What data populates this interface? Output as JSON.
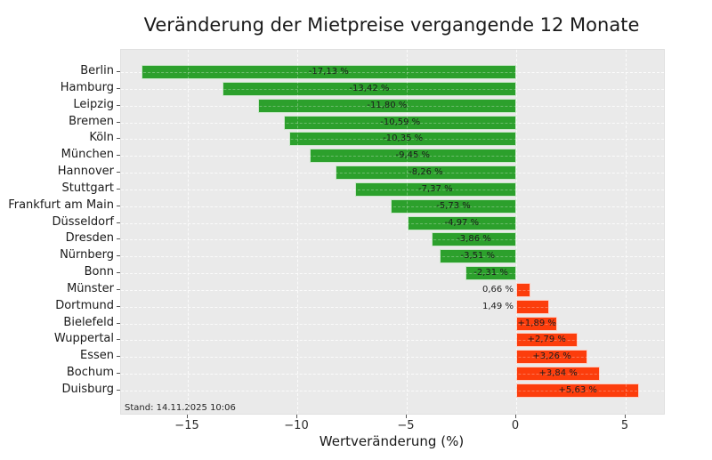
{
  "chart_data": {
    "type": "bar",
    "orientation": "horizontal",
    "title": "Veränderung der Mietpreise vergangende 12 Monate",
    "xlabel": "Wertveränderung (%)",
    "ylabel": "",
    "annotation": "Stand: 14.11.2025 10:06",
    "grid": true,
    "legend": "none",
    "xlim": [
      -18.05,
      6.75
    ],
    "xticks": [
      -15,
      -10,
      -5,
      0,
      5
    ],
    "xtick_labels": [
      "−15",
      "−10",
      "−5",
      "0",
      "5"
    ],
    "categories": [
      "Berlin",
      "Hamburg",
      "Leipzig",
      "Bremen",
      "Köln",
      "München",
      "Hannover",
      "Stuttgart",
      "Frankfurt am Main",
      "Düsseldorf",
      "Dresden",
      "Nürnberg",
      "Bonn",
      "Münster",
      "Dortmund",
      "Bielefeld",
      "Wuppertal",
      "Essen",
      "Bochum",
      "Duisburg"
    ],
    "values": [
      -17.13,
      -13.42,
      -11.8,
      -10.59,
      -10.35,
      -9.45,
      -8.26,
      -7.37,
      -5.73,
      -4.97,
      -3.86,
      -3.51,
      -2.31,
      0.66,
      1.49,
      1.89,
      2.79,
      3.26,
      3.84,
      5.63
    ],
    "bar_labels": [
      "-17,13 %",
      "-13,42 %",
      "-11,80 %",
      "-10,59 %",
      "-10,35 %",
      "-9,45 %",
      "-8,26 %",
      "-7,37 %",
      "-5,73 %",
      "-4,97 %",
      "-3,86 %",
      "-3,51 %",
      "-2,31 %",
      "0,66 %",
      "1,49 %",
      "+1,89 %",
      "+2,79 %",
      "+3,26 %",
      "+3,84 %",
      "+5,63 %"
    ],
    "label_placement": [
      "inside",
      "inside",
      "inside",
      "inside",
      "inside",
      "inside",
      "inside",
      "inside",
      "inside",
      "inside",
      "inside",
      "inside",
      "inside",
      "outside",
      "outside",
      "inside",
      "inside",
      "inside",
      "inside",
      "inside"
    ],
    "colors": {
      "negative_bar": "#2ca02c",
      "positive_bar": "#fc3d0c",
      "plot_background": "#eaeaea",
      "gridline": "#fafafa",
      "label_text": "#1c1c1c"
    }
  }
}
